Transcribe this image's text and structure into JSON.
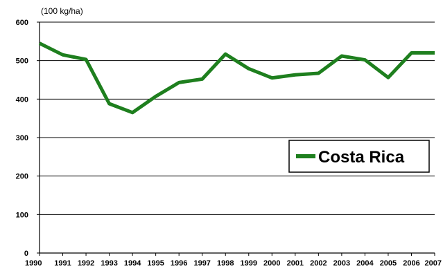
{
  "chart_data": {
    "type": "line",
    "ylabel": "(100 kg/ha)",
    "ylim": [
      0,
      600
    ],
    "yticks": [
      0,
      100,
      200,
      300,
      400,
      500,
      600
    ],
    "grid": true,
    "legend_position": "right-middle",
    "x": [
      "1990",
      "1991",
      "1992",
      "1993",
      "1994",
      "1995",
      "1996",
      "1997",
      "1998",
      "1999",
      "2000",
      "2001",
      "2002",
      "2003",
      "2004",
      "2005",
      "2006",
      "2007"
    ],
    "series": [
      {
        "name": "Costa Rica",
        "color": "#1e7f1e",
        "values": [
          545,
          515,
          503,
          388,
          365,
          407,
          443,
          452,
          517,
          479,
          455,
          463,
          467,
          512,
          502,
          456,
          520,
          520
        ]
      }
    ]
  }
}
